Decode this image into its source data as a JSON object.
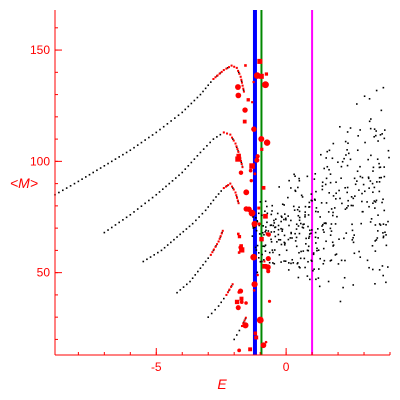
{
  "chart_data": {
    "type": "scatter",
    "title": "",
    "xlabel": "E",
    "ylabel": "<M>",
    "xlim": [
      -8.9,
      4.0
    ],
    "ylim": [
      13,
      168
    ],
    "x_ticks": [
      -5,
      0
    ],
    "y_ticks": [
      50,
      100,
      150
    ],
    "grid": false,
    "colors": {
      "axis": "#ff0000",
      "small_points": "#000000",
      "large_points": "#ff0000"
    },
    "vertical_lines": [
      {
        "x": -1.2,
        "color": "#0000ff"
      },
      {
        "x": -0.95,
        "color": "#008800"
      },
      {
        "x": 1.0,
        "color": "#ff00ff"
      }
    ],
    "curves": [
      {
        "x": [
          -8.9,
          -8.0,
          -7.0,
          -6.0,
          -5.0,
          -4.0,
          -3.3,
          -2.8,
          -2.4,
          -2.1,
          -1.9,
          -1.75,
          -1.6
        ],
        "y": [
          85,
          91,
          98,
          105,
          113,
          122,
          130,
          137,
          141,
          143,
          142,
          138,
          130
        ]
      },
      {
        "x": [
          -7.0,
          -6.0,
          -5.0,
          -4.0,
          -3.3,
          -2.8,
          -2.4,
          -2.15,
          -1.95,
          -1.8,
          -1.65
        ],
        "y": [
          68,
          76,
          85,
          95,
          104,
          110,
          113,
          112,
          108,
          103,
          96
        ]
      },
      {
        "x": [
          -5.5,
          -4.8,
          -4.2,
          -3.6,
          -3.1,
          -2.7,
          -2.4,
          -2.15,
          -1.95,
          -1.8
        ],
        "y": [
          55,
          60,
          66,
          72,
          78,
          84,
          88,
          90,
          86,
          80
        ]
      },
      {
        "x": [
          -4.2,
          -3.7,
          -3.3,
          -2.9,
          -2.6,
          -2.4
        ],
        "y": [
          41,
          46,
          52,
          58,
          64,
          70
        ]
      },
      {
        "x": [
          -3.0,
          -2.6,
          -2.3,
          -2.0
        ],
        "y": [
          30,
          35,
          40,
          46
        ]
      },
      {
        "x": [
          -2.0,
          -1.7,
          -1.5
        ],
        "y": [
          20,
          26,
          31
        ]
      }
    ],
    "scatter_cloud": {
      "x_range": [
        -1.3,
        4.0
      ],
      "y_range": [
        35,
        165
      ],
      "count": 420
    },
    "large_points": {
      "x_range": [
        -1.9,
        -0.6
      ],
      "y_range": [
        15,
        145
      ],
      "count": 70
    }
  }
}
